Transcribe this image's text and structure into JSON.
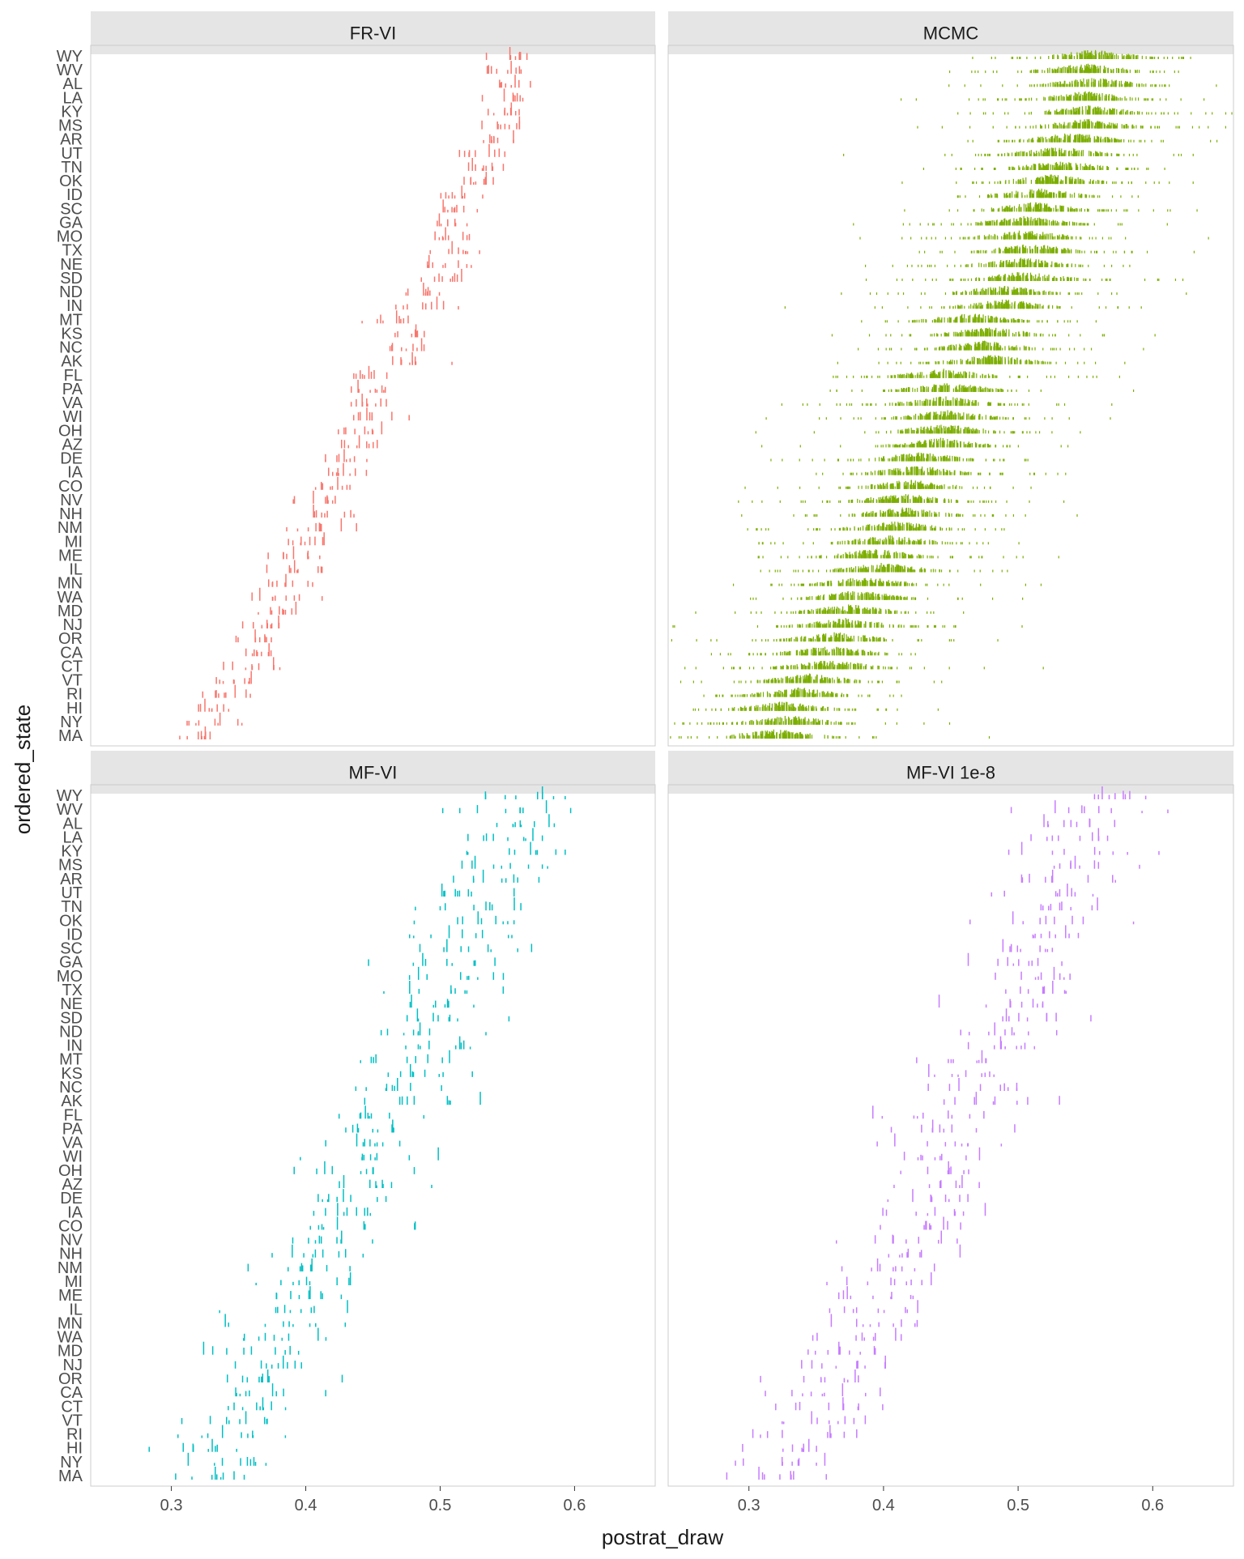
{
  "chart_data": {
    "type": "scatter",
    "mark": "tick",
    "xlabel": "postrat_draw",
    "ylabel": "ordered_state",
    "xlim": [
      0.24,
      0.66
    ],
    "xticks": [
      0.3,
      0.4,
      0.5,
      0.6
    ],
    "xtick_labels": [
      "0.3",
      "0.4",
      "0.5",
      "0.6"
    ],
    "states": [
      "WY",
      "WV",
      "AL",
      "LA",
      "KY",
      "MS",
      "AR",
      "UT",
      "TN",
      "OK",
      "ID",
      "SC",
      "GA",
      "MO",
      "TX",
      "NE",
      "SD",
      "ND",
      "IN",
      "MT",
      "KS",
      "NC",
      "AK",
      "FL",
      "PA",
      "VA",
      "WI",
      "OH",
      "AZ",
      "DE",
      "IA",
      "CO",
      "NV",
      "NH",
      "NM",
      "MI",
      "ME",
      "IL",
      "MN",
      "WA",
      "MD",
      "NJ",
      "OR",
      "CA",
      "CT",
      "VT",
      "RI",
      "HI",
      "NY",
      "MA"
    ],
    "centers": [
      0.555,
      0.55,
      0.556,
      0.55,
      0.552,
      0.551,
      0.54,
      0.53,
      0.532,
      0.525,
      0.515,
      0.512,
      0.505,
      0.505,
      0.51,
      0.503,
      0.505,
      0.49,
      0.49,
      0.465,
      0.478,
      0.475,
      0.48,
      0.445,
      0.448,
      0.445,
      0.447,
      0.445,
      0.442,
      0.425,
      0.425,
      0.42,
      0.415,
      0.415,
      0.41,
      0.405,
      0.393,
      0.4,
      0.385,
      0.38,
      0.375,
      0.372,
      0.365,
      0.36,
      0.36,
      0.345,
      0.338,
      0.325,
      0.33,
      0.32
    ],
    "grid": false,
    "legend": "none",
    "panels": [
      {
        "label": "FR-VI",
        "color": "#F8766D",
        "spread": 0.01,
        "style": "sparse"
      },
      {
        "label": "MCMC",
        "color": "#7CAE00",
        "spread": 0.03,
        "style": "dense"
      },
      {
        "label": "MF-VI",
        "color": "#00BFC4",
        "spread": 0.022,
        "style": "sparse"
      },
      {
        "label": "MF-VI 1e-8",
        "color": "#C77CFF",
        "spread": 0.022,
        "style": "sparse"
      }
    ]
  }
}
